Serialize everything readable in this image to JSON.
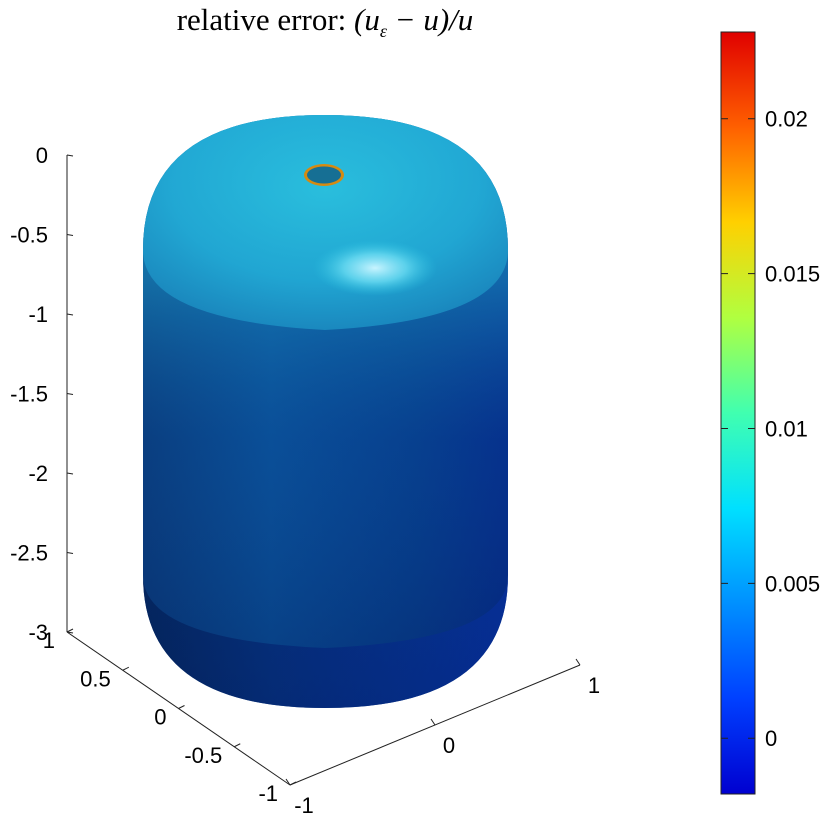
{
  "chart_data": {
    "type": "surface",
    "title_prefix": "relative error: ",
    "title_math": "(u",
    "title_sub": "ε",
    "title_math_tail": " − u)/u",
    "zlim": [
      -3,
      0
    ],
    "z_ticks": [
      "0",
      "-0.5",
      "-1",
      "-1.5",
      "-2",
      "-2.5",
      "-3"
    ],
    "y_ticks": [
      "1",
      "0.5",
      "0",
      "-0.5",
      "-1"
    ],
    "x_ticks": [
      "-1",
      "0",
      "1"
    ],
    "xlim": [
      -1,
      1
    ],
    "ylim": [
      -1,
      1
    ],
    "colorbar": {
      "ticks": [
        "0.02",
        "0.015",
        "0.01",
        "0.005",
        "0"
      ],
      "tick_values": [
        0.02,
        0.015,
        0.01,
        0.005,
        0
      ],
      "range": [
        -0.0018,
        0.0228
      ],
      "colormap": "jet"
    },
    "surface_color_top": "#1fb6dc",
    "surface_color_bottom": "#031f70",
    "grid": false
  }
}
